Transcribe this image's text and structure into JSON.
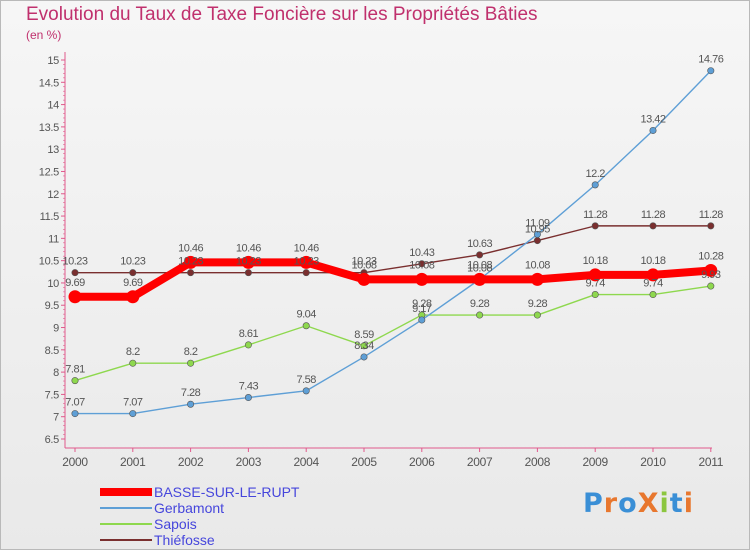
{
  "header": {
    "title": "Evolution du Taux de Taxe Foncière sur les Propriétés Bâties",
    "unit": "(en %)"
  },
  "logo": {
    "text": "ProXiti",
    "letters": [
      "P",
      "r",
      "o",
      "X",
      "i",
      "t",
      "i"
    ],
    "colors": [
      "#3a8fd6",
      "#e8772e",
      "#3a8fd6",
      "#e8772e",
      "#8cc63f",
      "#3a8fd6",
      "#e8772e"
    ]
  },
  "chart_data": {
    "type": "line",
    "title": "Evolution du Taux de Taxe Foncière sur les Propriétés Bâties",
    "ylabel": "(en %)",
    "xlabel": "",
    "x": [
      "2000",
      "2001",
      "2002",
      "2003",
      "2004",
      "2005",
      "2006",
      "2007",
      "2008",
      "2009",
      "2010",
      "2011"
    ],
    "ylim": [
      6.5,
      15
    ],
    "yticks": [
      "6.5",
      "7",
      "7.5",
      "8",
      "8.5",
      "9",
      "9.5",
      "10",
      "10.5",
      "11",
      "11.5",
      "12",
      "12.5",
      "13",
      "13.5",
      "14",
      "14.5",
      "15"
    ],
    "grid": false,
    "legend_position": "bottom-left",
    "series": [
      {
        "name": "BASSE-SUR-LE-RUPT",
        "color": "#ff0000",
        "values": [
          9.69,
          9.69,
          10.46,
          10.46,
          10.46,
          10.08,
          10.08,
          10.08,
          10.08,
          10.18,
          10.18,
          10.28
        ],
        "labels": [
          "9.69",
          "9.69",
          "10.46",
          "10.46",
          "10.46",
          "10.08",
          "10.08",
          "10.08",
          "10.08",
          "10.18",
          "10.18",
          "10.28"
        ]
      },
      {
        "name": "Gerbamont",
        "color": "#5e9fd6",
        "values": [
          7.07,
          7.07,
          7.28,
          7.43,
          7.58,
          8.34,
          9.17,
          10.08,
          11.09,
          12.2,
          13.42,
          14.76
        ],
        "labels": [
          "7.07",
          "7.07",
          "7.28",
          "7.43",
          "7.58",
          "8.34",
          "9.17",
          "10.08",
          "11.09",
          "12.2",
          "13.42",
          "14.76"
        ]
      },
      {
        "name": "Sapois",
        "color": "#8ed84e",
        "values": [
          7.81,
          8.2,
          8.2,
          8.61,
          9.04,
          8.59,
          9.28,
          9.28,
          9.28,
          9.74,
          9.74,
          9.93
        ],
        "labels": [
          "7.81",
          "8.2",
          "8.2",
          "8.61",
          "9.04",
          "8.59",
          "9.28",
          "9.28",
          "9.28",
          "9.74",
          "9.74",
          "9.93"
        ]
      },
      {
        "name": "Thiéfosse",
        "color": "#7a2f2f",
        "values": [
          10.23,
          10.23,
          10.23,
          10.23,
          10.23,
          10.23,
          10.43,
          10.63,
          10.95,
          11.28,
          11.28,
          11.28
        ],
        "labels": [
          "10.23",
          "10.23",
          "10.23",
          "10.23",
          "10.23",
          "10.23",
          "10.43",
          "10.63",
          "10.95",
          "11.28",
          "11.28",
          "11.28"
        ]
      }
    ]
  }
}
